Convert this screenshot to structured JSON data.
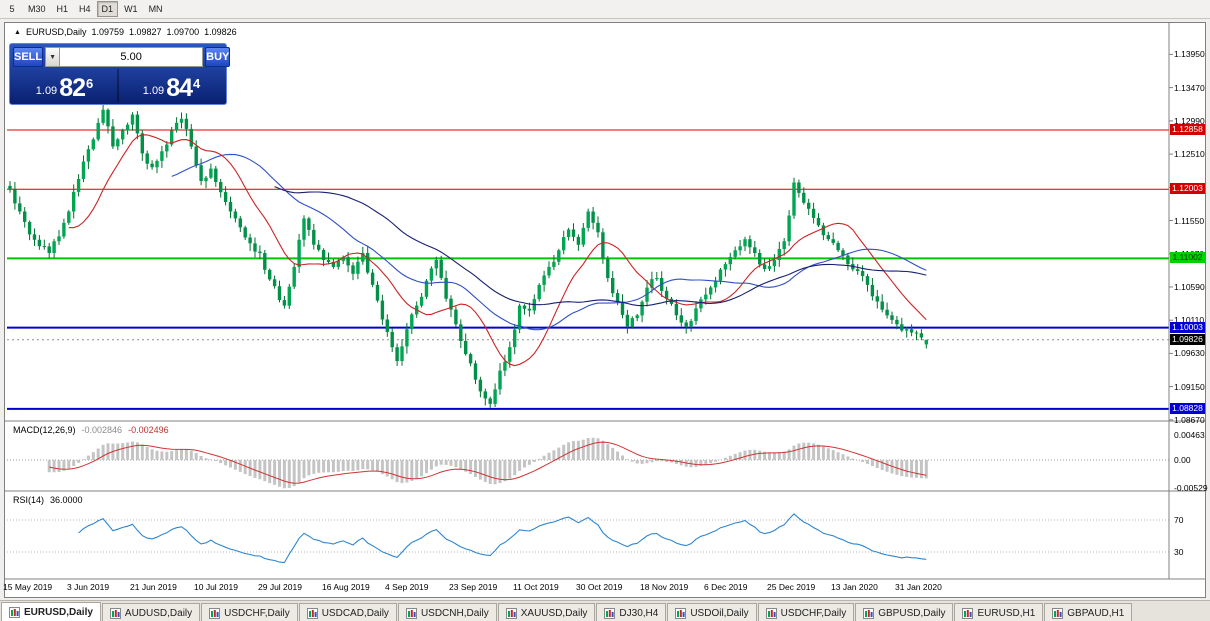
{
  "toolbar": {
    "timeframes": [
      {
        "label": "5",
        "active": false
      },
      {
        "label": "M30",
        "active": false
      },
      {
        "label": "H1",
        "active": false
      },
      {
        "label": "H4",
        "active": false
      },
      {
        "label": "D1",
        "active": true
      },
      {
        "label": "W1",
        "active": false
      },
      {
        "label": "MN",
        "active": false
      }
    ]
  },
  "chart_header": {
    "symbol": "EURUSD,Daily",
    "open": "1.09759",
    "high": "1.09827",
    "low": "1.09700",
    "close": "1.09826"
  },
  "quote_panel": {
    "sell_label": "SELL",
    "buy_label": "BUY",
    "lot_value": "5.00",
    "bid": {
      "prefix": "1.09",
      "big": "82",
      "sup": "6"
    },
    "ask": {
      "prefix": "1.09",
      "big": "84",
      "sup": "4"
    }
  },
  "chart_data": {
    "type": "candlestick",
    "title": "EURUSD,Daily",
    "num_days": 188,
    "days_per_label": 13,
    "first_open": 1.1205,
    "ohlc_last": {
      "open": 1.09759,
      "high": 1.09827,
      "low": 1.097,
      "close": 1.09826
    },
    "y_ticks": [
      "1.13950",
      "1.13470",
      "1.12990",
      "1.12510",
      "1.12030",
      "1.11550",
      "1.11070",
      "1.10590",
      "1.10110",
      "1.09630",
      "1.09150",
      "1.08670"
    ],
    "x_labels": [
      "15 May 2019",
      "3 Jun 2019",
      "21 Jun 2019",
      "10 Jul 2019",
      "29 Jul 2019",
      "16 Aug 2019",
      "4 Sep 2019",
      "23 Sep 2019",
      "11 Oct 2019",
      "30 Oct 2019",
      "18 Nov 2019",
      "6 Dec 2019",
      "25 Dec 2019",
      "13 Jan 2020",
      "31 Jan 2020"
    ],
    "price_anchors": [
      [
        0,
        1.12
      ],
      [
        2,
        1.1168
      ],
      [
        4,
        1.1135
      ],
      [
        6,
        1.1118
      ],
      [
        8,
        1.1108
      ],
      [
        10,
        1.1132
      ],
      [
        12,
        1.1168
      ],
      [
        14,
        1.1215
      ],
      [
        16,
        1.1258
      ],
      [
        18,
        1.1296
      ],
      [
        19,
        1.1315
      ],
      [
        21,
        1.1262
      ],
      [
        23,
        1.1285
      ],
      [
        25,
        1.1308
      ],
      [
        27,
        1.1252
      ],
      [
        29,
        1.1232
      ],
      [
        31,
        1.1255
      ],
      [
        33,
        1.1285
      ],
      [
        35,
        1.1302
      ],
      [
        37,
        1.1262
      ],
      [
        39,
        1.1212
      ],
      [
        41,
        1.123
      ],
      [
        43,
        1.1196
      ],
      [
        45,
        1.1168
      ],
      [
        47,
        1.1145
      ],
      [
        49,
        1.1122
      ],
      [
        51,
        1.1108
      ],
      [
        53,
        1.107
      ],
      [
        55,
        1.104
      ],
      [
        56,
        1.1032
      ],
      [
        58,
        1.1088
      ],
      [
        60,
        1.1158
      ],
      [
        62,
        1.112
      ],
      [
        64,
        1.1098
      ],
      [
        66,
        1.1088
      ],
      [
        68,
        1.1102
      ],
      [
        70,
        1.1078
      ],
      [
        72,
        1.1108
      ],
      [
        74,
        1.1062
      ],
      [
        76,
        1.1012
      ],
      [
        78,
        1.0972
      ],
      [
        79,
        1.0952
      ],
      [
        81,
        1.0998
      ],
      [
        83,
        1.1032
      ],
      [
        85,
        1.1068
      ],
      [
        87,
        1.1098
      ],
      [
        89,
        1.1042
      ],
      [
        91,
        1.1005
      ],
      [
        93,
        1.0962
      ],
      [
        95,
        1.0925
      ],
      [
        97,
        1.0898
      ],
      [
        98,
        1.089
      ],
      [
        100,
        1.0938
      ],
      [
        102,
        1.0972
      ],
      [
        104,
        1.1032
      ],
      [
        106,
        1.1025
      ],
      [
        108,
        1.1062
      ],
      [
        110,
        1.1088
      ],
      [
        112,
        1.1112
      ],
      [
        114,
        1.1142
      ],
      [
        116,
        1.112
      ],
      [
        118,
        1.1168
      ],
      [
        120,
        1.1138
      ],
      [
        122,
        1.1072
      ],
      [
        124,
        1.1038
      ],
      [
        126,
        1.1002
      ],
      [
        128,
        1.1018
      ],
      [
        130,
        1.1058
      ],
      [
        132,
        1.1072
      ],
      [
        134,
        1.1042
      ],
      [
        136,
        1.1018
      ],
      [
        138,
        1.1002
      ],
      [
        140,
        1.1028
      ],
      [
        142,
        1.1048
      ],
      [
        144,
        1.1068
      ],
      [
        146,
        1.1092
      ],
      [
        148,
        1.1112
      ],
      [
        150,
        1.1128
      ],
      [
        152,
        1.1108
      ],
      [
        154,
        1.1085
      ],
      [
        156,
        1.1098
      ],
      [
        158,
        1.1125
      ],
      [
        160,
        1.121
      ],
      [
        161,
        1.1195
      ],
      [
        163,
        1.1172
      ],
      [
        165,
        1.1148
      ],
      [
        167,
        1.1128
      ],
      [
        169,
        1.1112
      ],
      [
        171,
        1.1092
      ],
      [
        173,
        1.1082
      ],
      [
        175,
        1.1062
      ],
      [
        177,
        1.1038
      ],
      [
        179,
        1.1018
      ],
      [
        181,
        1.1005
      ],
      [
        183,
        1.0998
      ],
      [
        185,
        1.0992
      ],
      [
        186,
        1.0986
      ],
      [
        187,
        1.0983
      ]
    ],
    "colors": {
      "bull": "#00A651",
      "bear": "#009048",
      "wick": "#00702F"
    },
    "moving_averages": [
      {
        "period": 13,
        "color": "#CC2222"
      },
      {
        "period": 34,
        "color": "#3050C8"
      },
      {
        "period": 55,
        "color": "#18206E"
      }
    ],
    "horizontal_lines": [
      {
        "price": 1.12858,
        "label": "1.12858",
        "color": "#D40000",
        "width": 1,
        "label_bg": "#D40000",
        "label_fg": "#FFFFFF"
      },
      {
        "price": 1.12003,
        "label": "1.12003",
        "color": "#D40000",
        "width": 1,
        "label_bg": "#D40000",
        "label_fg": "#FFFFFF"
      },
      {
        "price": 1.11002,
        "label": "1.11002",
        "color": "#00C800",
        "width": 2,
        "label_bg": "#00D200",
        "label_fg": "#003300"
      },
      {
        "price": 1.10003,
        "label": "1.10003",
        "color": "#0000D4",
        "width": 2,
        "label_bg": "#0000D4",
        "label_fg": "#FFFFFF"
      },
      {
        "price": 1.08828,
        "label": "1.08828",
        "color": "#0000D4",
        "width": 2,
        "label_bg": "#0000D4",
        "label_fg": "#FFFFFF"
      }
    ],
    "current_price": {
      "label": "1.09826",
      "value": 1.09826,
      "label_bg": "#000000",
      "label_fg": "#FFFFFF"
    },
    "indicators": {
      "macd": {
        "title": "MACD(12,26,9)",
        "value_main": "-0.002846",
        "value_signal": "-0.002496",
        "ticks": [
          {
            "label": "0.00463",
            "value": 0.00463
          },
          {
            "label": "0.00",
            "value": 0
          },
          {
            "label": "-0.00529",
            "value": -0.00529
          }
        ],
        "histogram_color": "#C4C4C4",
        "signal_color": "#D03434"
      },
      "rsi": {
        "title": "RSI(14)",
        "value": "36.0000",
        "levels": [
          70,
          30
        ],
        "line_color": "#2E86D0"
      }
    }
  },
  "tabs": [
    {
      "label": "EURUSD,Daily",
      "active": true
    },
    {
      "label": "AUDUSD,Daily",
      "active": false
    },
    {
      "label": "USDCHF,Daily",
      "active": false
    },
    {
      "label": "USDCAD,Daily",
      "active": false
    },
    {
      "label": "USDCNH,Daily",
      "active": false
    },
    {
      "label": "XAUUSD,Daily",
      "active": false
    },
    {
      "label": "DJ30,H4",
      "active": false
    },
    {
      "label": "USDOil,Daily",
      "active": false
    },
    {
      "label": "USDCHF,Daily",
      "active": false
    },
    {
      "label": "GBPUSD,Daily",
      "active": false
    },
    {
      "label": "EURUSD,H1",
      "active": false
    },
    {
      "label": "GBPAUD,H1",
      "active": false
    }
  ]
}
